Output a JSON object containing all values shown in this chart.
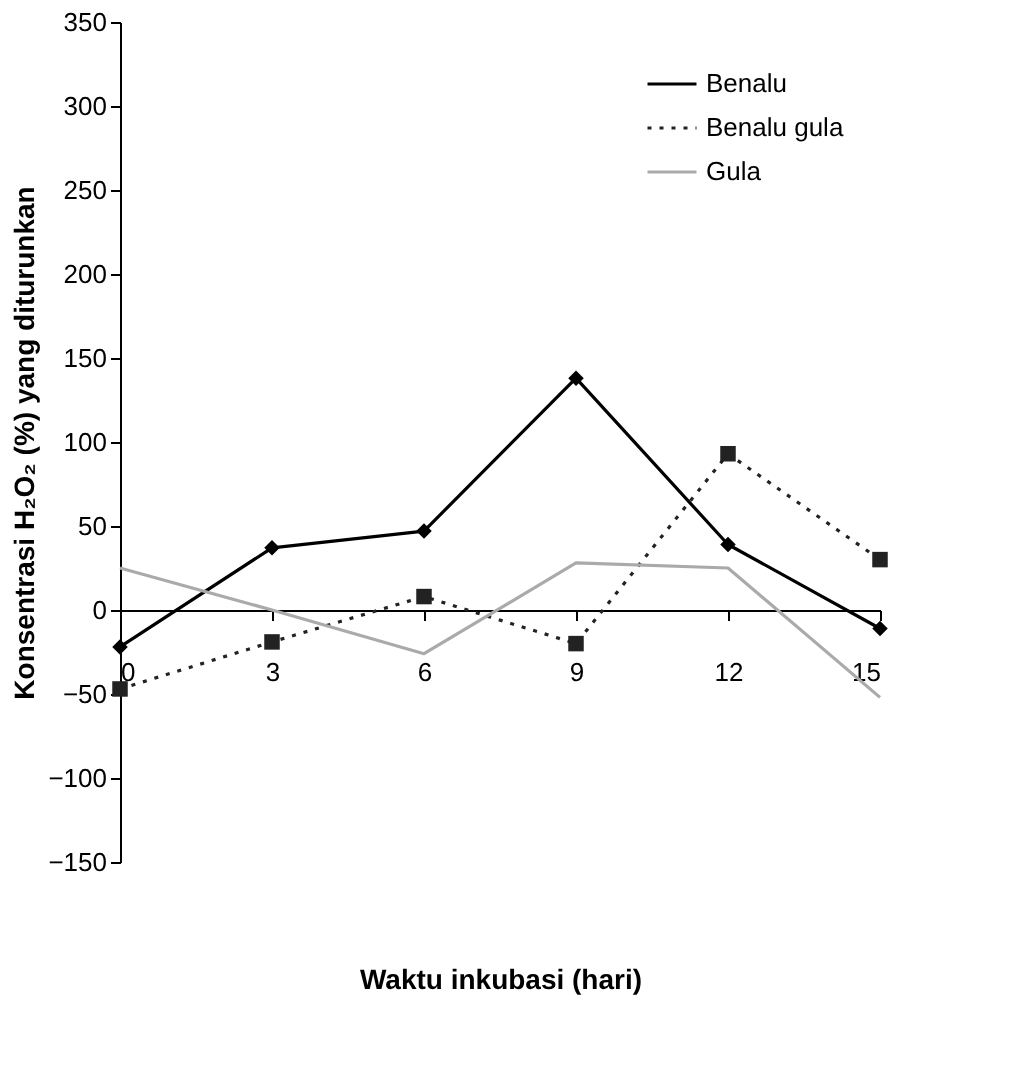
{
  "chart_data": {
    "type": "line",
    "xlabel": "Waktu inkubasi (hari)",
    "ylabel": "Konsentrasi H₂O₂ (%) yang diturunkan",
    "x": [
      0,
      3,
      6,
      9,
      12,
      15
    ],
    "series": [
      {
        "name": "Benalu",
        "color": "#000000",
        "marker": "diamond",
        "line_style": "solid",
        "values": [
          -22,
          37,
          47,
          138,
          39,
          -11
        ]
      },
      {
        "name": "Benalu gula",
        "color": "#222222",
        "marker": "square",
        "line_style": "dotted",
        "values": [
          -47,
          -19,
          8,
          -20,
          93,
          30
        ]
      },
      {
        "name": "Gula",
        "color": "#aaaaaa",
        "marker": "none",
        "line_style": "solid",
        "values": [
          25,
          0,
          -26,
          28,
          25,
          -52
        ]
      }
    ],
    "xlim": [
      0,
      15
    ],
    "xticks": [
      0,
      3,
      6,
      9,
      12,
      15
    ],
    "ylim": [
      -150,
      350
    ],
    "yticks": [
      -150,
      -100,
      -50,
      0,
      50,
      100,
      150,
      200,
      250,
      300,
      350
    ],
    "grid": false,
    "legend": "top right"
  }
}
